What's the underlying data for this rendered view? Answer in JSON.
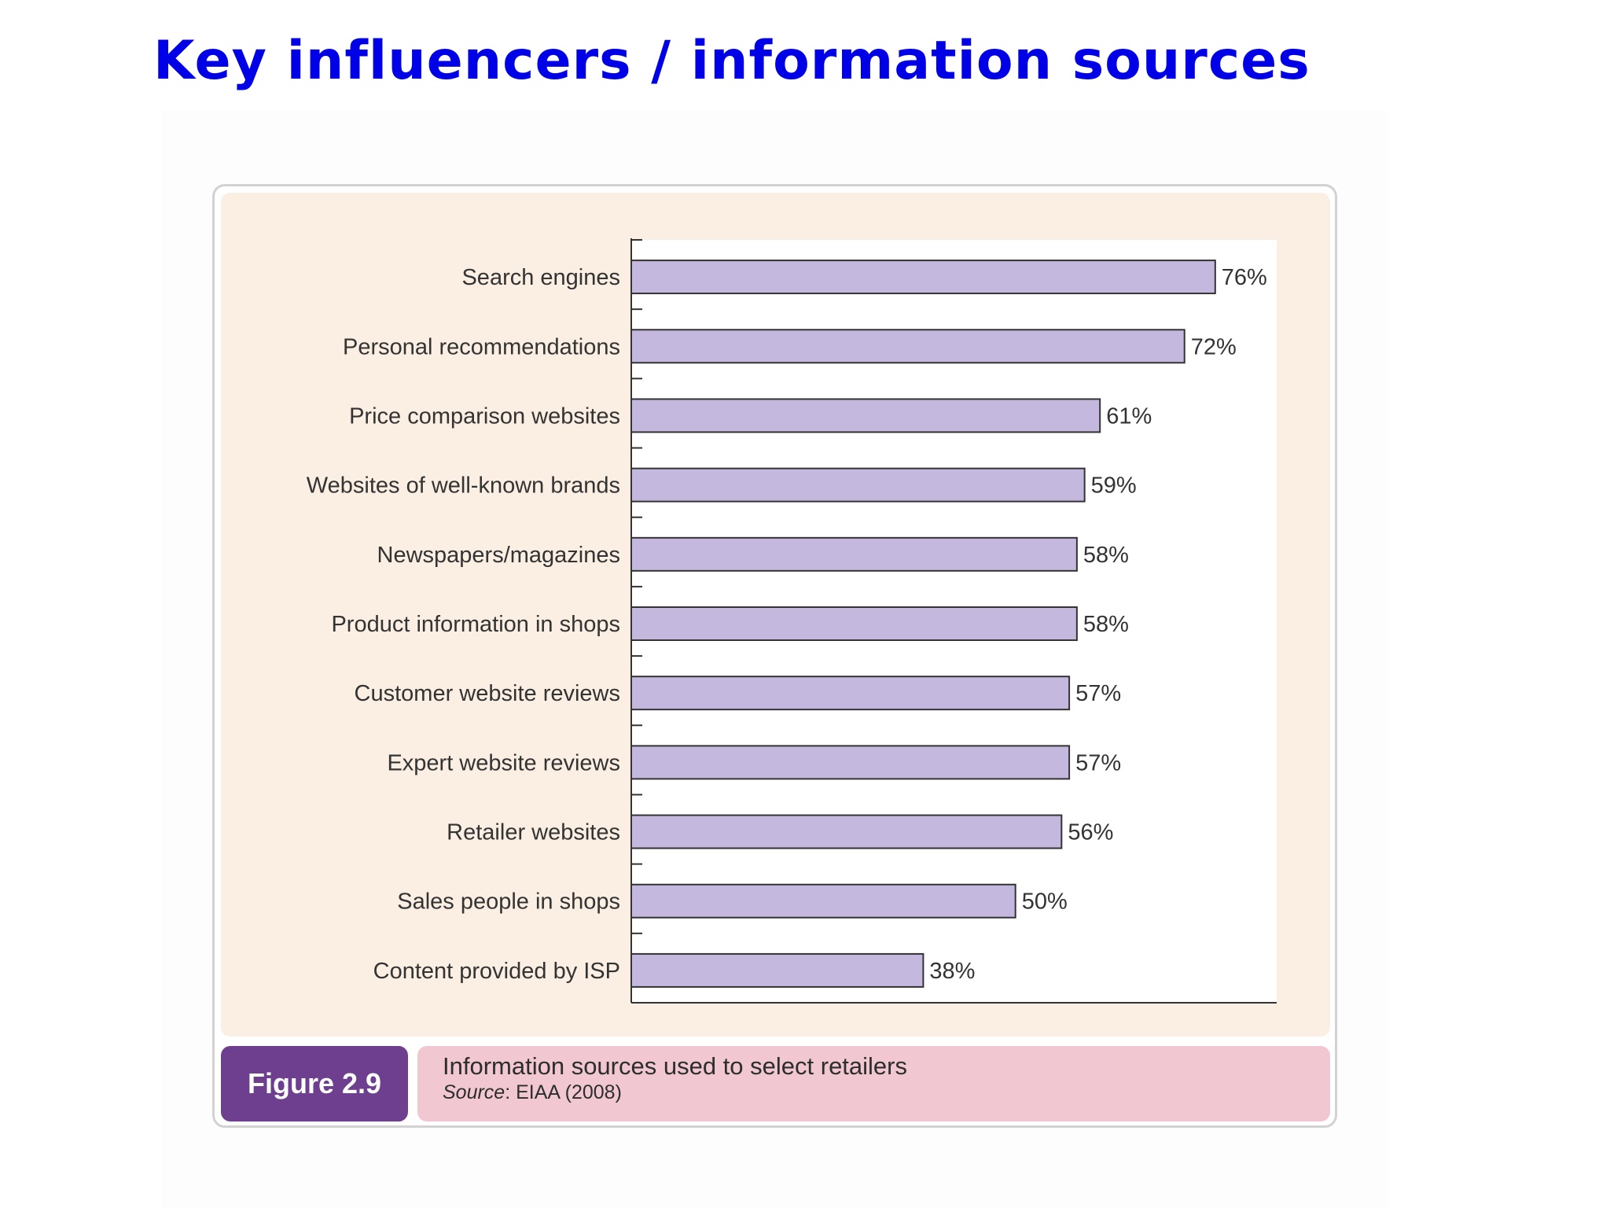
{
  "slide": {
    "title": "Key influencers / information sources",
    "title_color": "#0000e6"
  },
  "figure": {
    "label": "Figure 2.9",
    "caption": "Information sources used to select retailers",
    "source_label": "Source",
    "source_text": ": EIAA (2008)"
  },
  "colors": {
    "panel_bg": "#fbeee3",
    "plot_bg": "#ffffff",
    "bar_fill": "#c5b8de",
    "bar_stroke": "#333333",
    "badge_bg": "#6e3f8e",
    "caption_bg": "#f1c8d1",
    "text": "#333333"
  },
  "chart_data": {
    "type": "bar",
    "orientation": "horizontal",
    "categories": [
      "Search engines",
      "Personal recommendations",
      "Price comparison websites",
      "Websites of well-known brands",
      "Newspapers/magazines",
      "Product information in shops",
      "Customer website reviews",
      "Expert website reviews",
      "Retailer websites",
      "Sales people in shops",
      "Content provided by ISP"
    ],
    "values": [
      76,
      72,
      61,
      59,
      58,
      58,
      57,
      57,
      56,
      50,
      38
    ],
    "value_labels": [
      "76%",
      "72%",
      "61%",
      "59%",
      "58%",
      "58%",
      "57%",
      "57%",
      "56%",
      "50%",
      "38%"
    ],
    "xlim": [
      0,
      84
    ],
    "grid": false,
    "legend": "none"
  }
}
